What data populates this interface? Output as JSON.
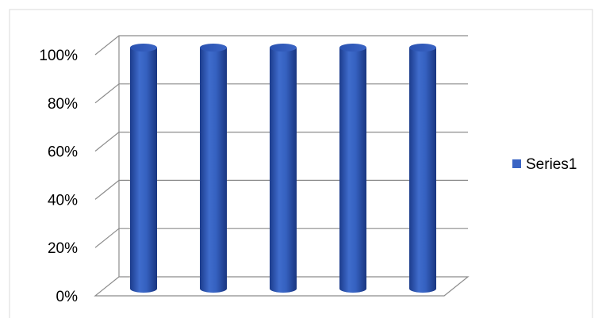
{
  "chart_data": {
    "type": "bar",
    "style": "3d-cylinder",
    "categories": [
      "",
      "",
      "",
      "",
      ""
    ],
    "series": [
      {
        "name": "Series1",
        "values": [
          100,
          100,
          100,
          100,
          100
        ]
      }
    ],
    "ylim": [
      0,
      100
    ],
    "yticks": [
      0,
      20,
      40,
      60,
      80,
      100
    ],
    "ytick_labels": [
      "0%",
      "20%",
      "40%",
      "60%",
      "80%",
      "100%"
    ],
    "ytick_format": "percent",
    "grid": true,
    "legend_position": "right",
    "colors": {
      "series": "#3a64c4",
      "series_dark": "#1e3f8f",
      "grid": "#8c8c8c",
      "wall": "#ffffff"
    }
  }
}
